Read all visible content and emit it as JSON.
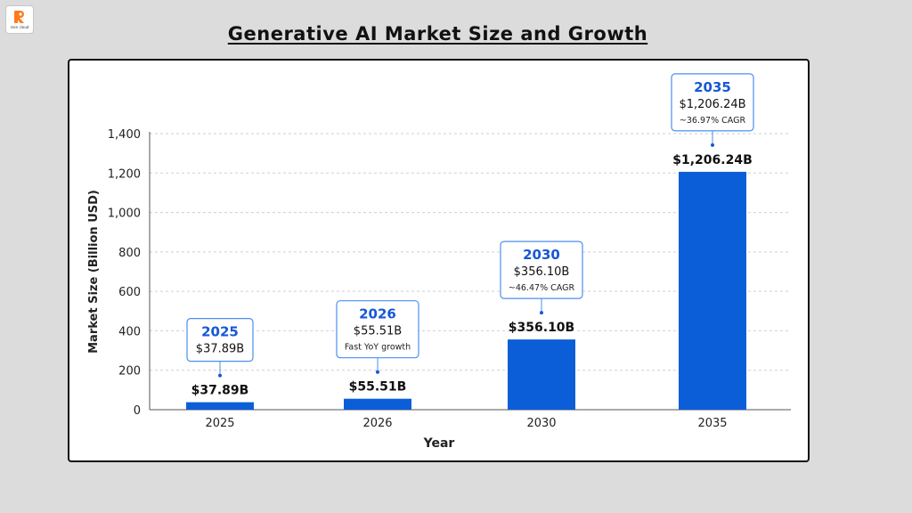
{
  "title": "Generative AI Market Size and Growth",
  "logo": {
    "label": "rsen cloud",
    "accent": "#ff7a1a"
  },
  "colors": {
    "bar": "#0b5ed7",
    "callout_border": "#4a8ff0",
    "callout_year": "#1558d6",
    "grid": "#cfcfcf"
  },
  "chart_data": {
    "type": "bar",
    "xlabel": "Year",
    "ylabel": "Market Size (Billion USD)",
    "ylim": [
      0,
      1400
    ],
    "yticks": [
      0,
      200,
      400,
      600,
      800,
      1000,
      1200,
      1400
    ],
    "ytick_labels": [
      "0",
      "200",
      "400",
      "600",
      "800",
      "1,000",
      "1,200",
      "1,400"
    ],
    "grid": true,
    "categories": [
      "2025",
      "2026",
      "2030",
      "2035"
    ],
    "values": [
      37.89,
      55.51,
      356.1,
      1206.24
    ],
    "value_labels": [
      "$37.89B",
      "$55.51B",
      "$356.10B",
      "$1,206.24B"
    ],
    "annotations": [
      {
        "year": "2025",
        "value": "$37.89B",
        "note": ""
      },
      {
        "year": "2026",
        "value": "$55.51B",
        "note": "Fast YoY growth"
      },
      {
        "year": "2030",
        "value": "$356.10B",
        "note": "~46.47% CAGR"
      },
      {
        "year": "2035",
        "value": "$1,206.24B",
        "note": "~36.97% CAGR"
      }
    ]
  }
}
